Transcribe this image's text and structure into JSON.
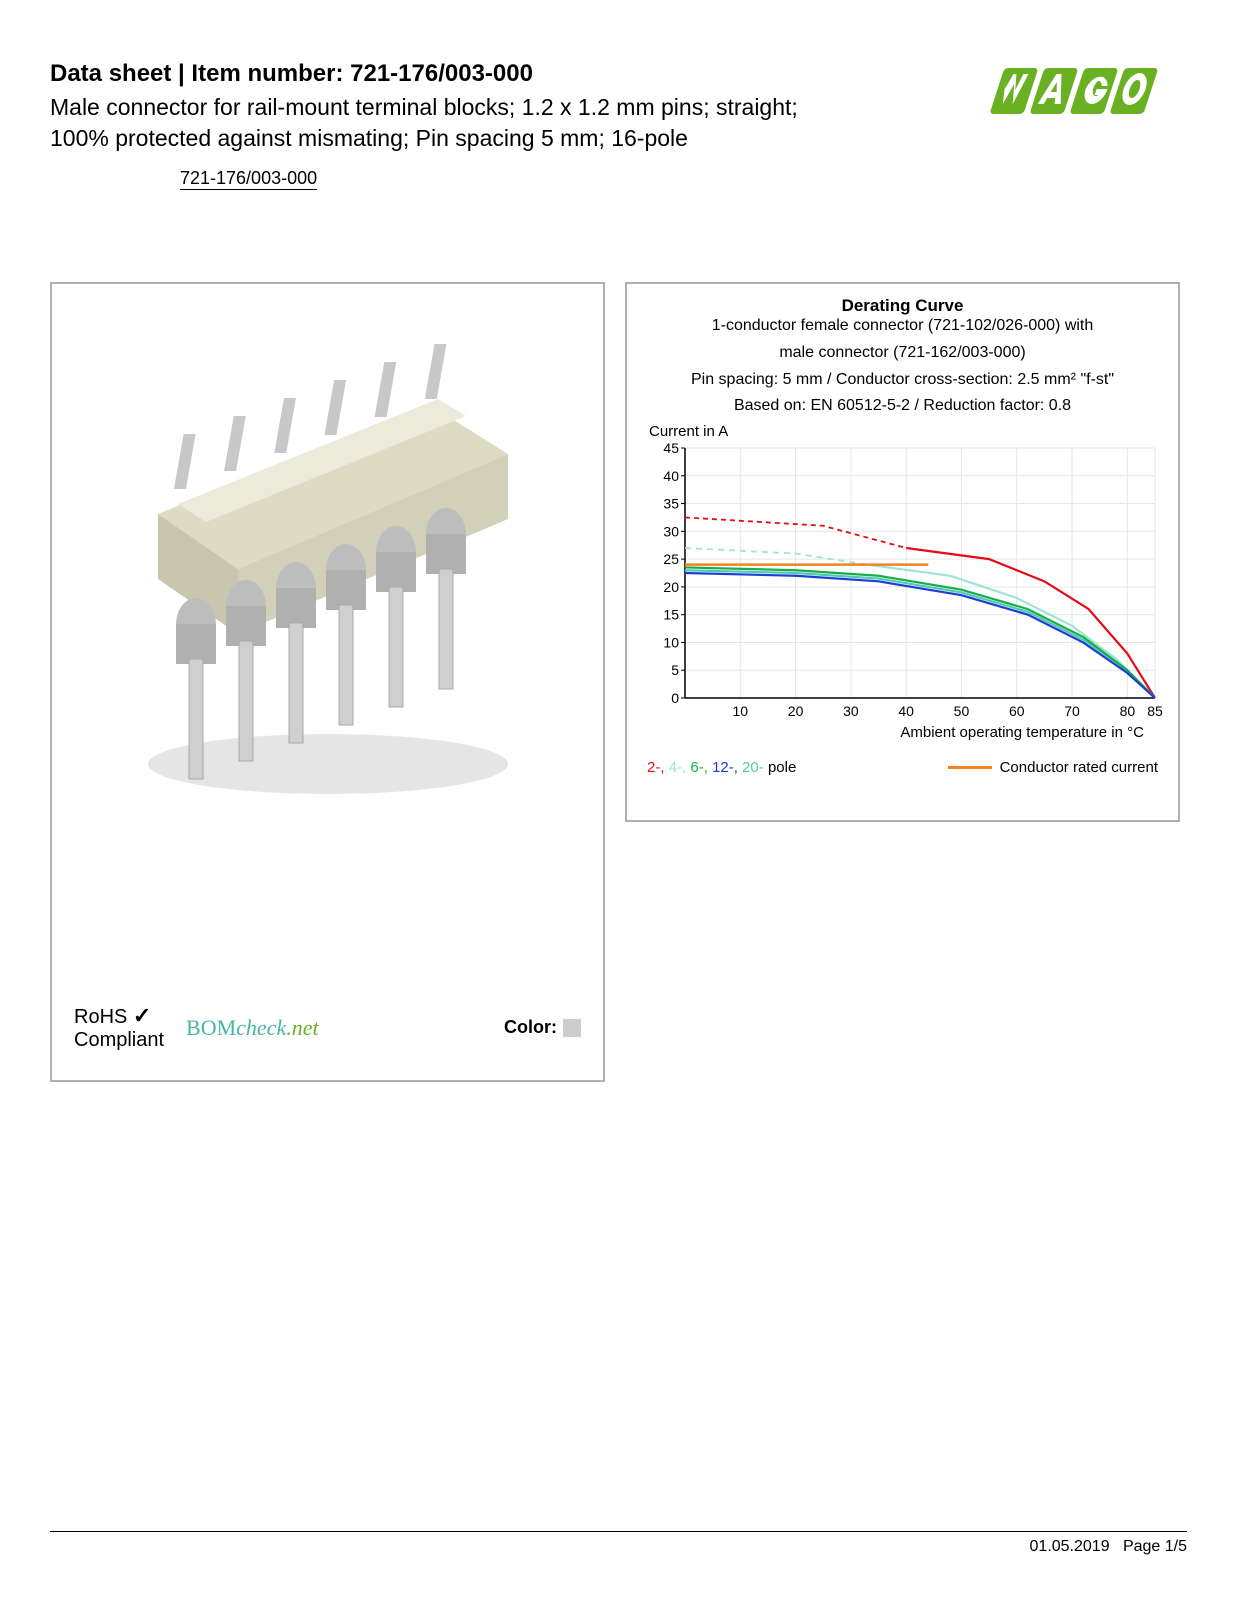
{
  "header": {
    "title_prefix": "Data sheet  |  Item number: ",
    "item_number": "721-176/003-000",
    "subtitle_l1": "Male connector for rail-mount terminal blocks; 1.2 x 1.2 mm pins; straight;",
    "subtitle_l2": "100% protected against mismating; Pin spacing 5 mm; 16-pole",
    "item_small": "721-176/003-000",
    "logo": {
      "brand": "WAGO",
      "fill": "#6ab023"
    }
  },
  "left_panel": {
    "product": {
      "body_color": "#dcd9c3",
      "pin_color": "#b8b8b8",
      "shadow_color": "#d7d7d7"
    },
    "rohs_l1": "RoHS",
    "rohs_l2": "Compliant",
    "checkmark": "✓",
    "bomcheck_bom": "BOM",
    "bomcheck_check": "check",
    "bomcheck_net": ".net",
    "bomcheck_color_bom": "#48b5a4",
    "bomcheck_color_net": "#6ab023",
    "color_label": "Color:",
    "color_swatch": "#cccccc"
  },
  "chart": {
    "title": "Derating Curve",
    "sub1": "1-conductor female connector (721-102/026-000) with",
    "sub2": "male connector (721-162/003-000)",
    "sub3": "Pin spacing: 5 mm / Conductor cross-section: 2.5 mm² \"f-st\"",
    "sub4": "Based on: EN 60512-5-2 / Reduction factor: 0.8",
    "ylabel": "Current in A",
    "xlabel": "Ambient operating temperature in °C",
    "ylim": [
      0,
      45
    ],
    "ytick_step": 5,
    "xlim": [
      0,
      85
    ],
    "xtick_labels": [
      "10",
      "20",
      "30",
      "40",
      "50",
      "60",
      "70",
      "80",
      "85"
    ],
    "xtick_vals": [
      10,
      20,
      30,
      40,
      50,
      60,
      70,
      80,
      85
    ],
    "grid_color": "#e6e6e6",
    "axis_color": "#000000",
    "tick_fontsize": 14,
    "series": {
      "s2": {
        "color": "#e40b13",
        "dash": "5,4",
        "width": 1.8,
        "data": [
          [
            0,
            32.5
          ],
          [
            25,
            31
          ],
          [
            40,
            27
          ]
        ]
      },
      "s2s": {
        "color": "#e40b13",
        "dash": "none",
        "width": 2.2,
        "data": [
          [
            40,
            27
          ],
          [
            55,
            25
          ],
          [
            65,
            21
          ],
          [
            73,
            16
          ],
          [
            80,
            8
          ],
          [
            85,
            0
          ]
        ]
      },
      "s4": {
        "color": "#9fe3d5",
        "dash": "6,5",
        "width": 1.8,
        "data": [
          [
            0,
            27
          ],
          [
            20,
            26
          ],
          [
            33,
            24
          ]
        ]
      },
      "s4s": {
        "color": "#9fe3d5",
        "dash": "none",
        "width": 2.2,
        "data": [
          [
            33,
            24
          ],
          [
            48,
            22
          ],
          [
            60,
            18
          ],
          [
            70,
            13
          ],
          [
            78,
            7
          ],
          [
            85,
            0
          ]
        ]
      },
      "s6": {
        "color": "#13b04a",
        "dash": "none",
        "width": 2.2,
        "data": [
          [
            0,
            23.5
          ],
          [
            20,
            23
          ],
          [
            35,
            22
          ],
          [
            50,
            19.5
          ],
          [
            62,
            16
          ],
          [
            72,
            11
          ],
          [
            80,
            5
          ],
          [
            85,
            0
          ]
        ]
      },
      "s12": {
        "color": "#1a3fd6",
        "dash": "none",
        "width": 2.2,
        "data": [
          [
            0,
            22.5
          ],
          [
            20,
            22
          ],
          [
            35,
            21
          ],
          [
            50,
            18.5
          ],
          [
            62,
            15
          ],
          [
            72,
            10
          ],
          [
            80,
            4.5
          ],
          [
            85,
            0
          ]
        ]
      },
      "s20": {
        "color": "#57c7b5",
        "dash": "none",
        "width": 2.2,
        "data": [
          [
            0,
            23
          ],
          [
            20,
            22.5
          ],
          [
            35,
            21.5
          ],
          [
            50,
            19
          ],
          [
            62,
            15.5
          ],
          [
            72,
            10.5
          ],
          [
            80,
            5
          ],
          [
            85,
            0
          ]
        ]
      },
      "rated": {
        "color": "#f58220",
        "dash": "none",
        "width": 2.5,
        "data": [
          [
            0,
            24
          ],
          [
            44,
            24
          ]
        ]
      }
    },
    "legend": {
      "items": [
        {
          "label": "2-, ",
          "color": "#e40b13"
        },
        {
          "label": "4-, ",
          "color": "#9fe3d5"
        },
        {
          "label": "6-, ",
          "color": "#13b04a"
        },
        {
          "label": "12-, ",
          "color": "#1a3fd6"
        },
        {
          "label": "20- ",
          "color": "#57c7b5"
        }
      ],
      "suffix": "pole",
      "rated_color": "#f58220",
      "rated_label": "Conductor rated current"
    }
  },
  "footer": {
    "date": "01.05.2019",
    "page": "Page 1/5"
  }
}
